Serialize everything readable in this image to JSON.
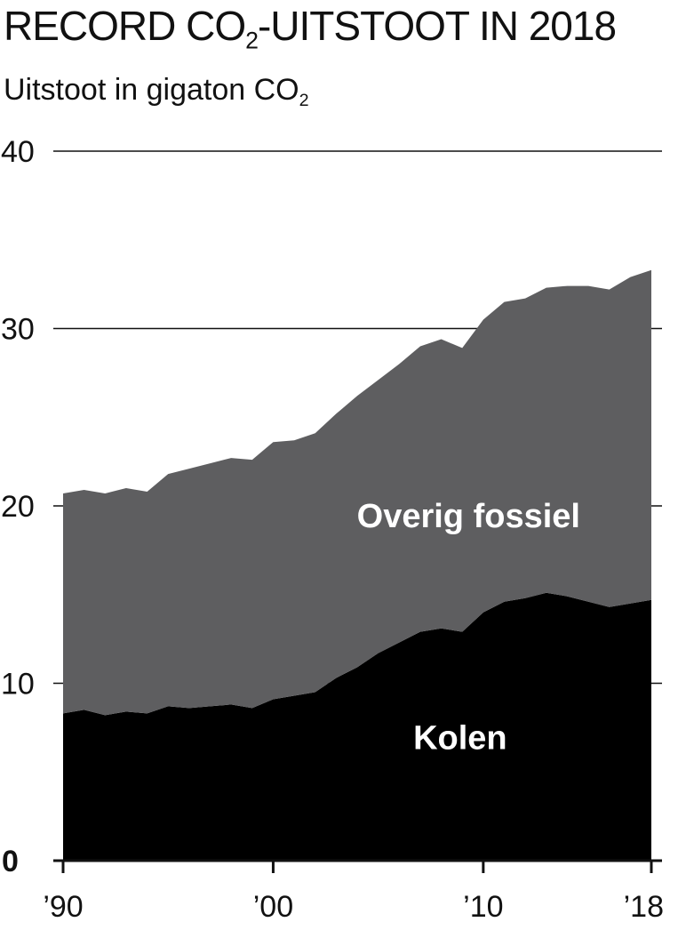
{
  "header": {
    "title_part1": "RECORD CO",
    "title_sub": "2",
    "title_part2": "-UITSTOOT IN 2018",
    "subtitle_part1": "Uitstoot in gigaton CO",
    "subtitle_sub": "2"
  },
  "colors": {
    "overig": "#5e5e60",
    "kolen": "#000000",
    "gridline": "#111111",
    "axis": "#111111"
  },
  "chart_data": {
    "type": "area",
    "stacked": true,
    "title": "RECORD CO2-UITSTOOT IN 2018",
    "subtitle": "Uitstoot in gigaton CO2",
    "xlabel": "",
    "ylabel": "",
    "x": [
      1990,
      1991,
      1992,
      1993,
      1994,
      1995,
      1996,
      1997,
      1998,
      1999,
      2000,
      2001,
      2002,
      2003,
      2004,
      2005,
      2006,
      2007,
      2008,
      2009,
      2010,
      2011,
      2012,
      2013,
      2014,
      2015,
      2016,
      2017,
      2018
    ],
    "series": [
      {
        "name": "Kolen",
        "values": [
          8.3,
          8.5,
          8.2,
          8.4,
          8.3,
          8.7,
          8.6,
          8.7,
          8.8,
          8.6,
          9.1,
          9.3,
          9.5,
          10.3,
          10.9,
          11.7,
          12.3,
          12.9,
          13.1,
          12.9,
          14.0,
          14.6,
          14.8,
          15.1,
          14.9,
          14.6,
          14.3,
          14.5,
          14.7
        ]
      },
      {
        "name": "Overig fossiel",
        "values": [
          12.4,
          12.4,
          12.5,
          12.6,
          12.5,
          13.1,
          13.5,
          13.7,
          13.9,
          14.0,
          14.5,
          14.4,
          14.6,
          14.9,
          15.3,
          15.4,
          15.7,
          16.1,
          16.3,
          16.0,
          16.5,
          16.9,
          16.9,
          17.2,
          17.5,
          17.8,
          17.9,
          18.4,
          18.6
        ]
      }
    ],
    "ylim": [
      0,
      40
    ],
    "xlim": [
      1990,
      2018
    ],
    "yticks": [
      0,
      10,
      20,
      30,
      40
    ],
    "ytick_labels": [
      "0",
      "10",
      "20",
      "30",
      "40"
    ],
    "xticks": [
      1990,
      2000,
      2010,
      2018
    ],
    "xtick_labels": [
      "’90",
      "’00",
      "’10",
      "’18"
    ],
    "grid": "horizontal",
    "annotations": [
      {
        "text": "Overig fossiel",
        "x": 2009.3,
        "y": 18.8,
        "series": "Overig fossiel"
      },
      {
        "text": "Kolen",
        "x": 2008.9,
        "y": 6.3,
        "series": "Kolen"
      }
    ],
    "legend": "none"
  }
}
